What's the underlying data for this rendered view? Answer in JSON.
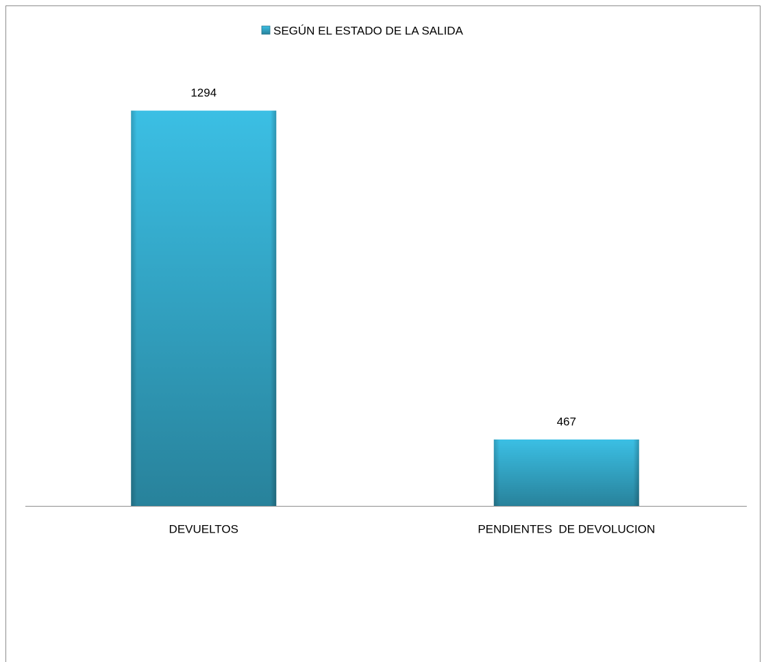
{
  "chart_data": {
    "type": "bar",
    "categories": [
      "DEVUELTOS",
      "PENDIENTES  DE DEVOLUCION"
    ],
    "series": [
      {
        "name": "SEGÚN EL ESTADO DE LA SALIDA",
        "color": "#3bbfe4",
        "values": [
          1294,
          467
        ]
      }
    ],
    "ylim": [
      300,
      1400
    ],
    "legend": "top"
  }
}
